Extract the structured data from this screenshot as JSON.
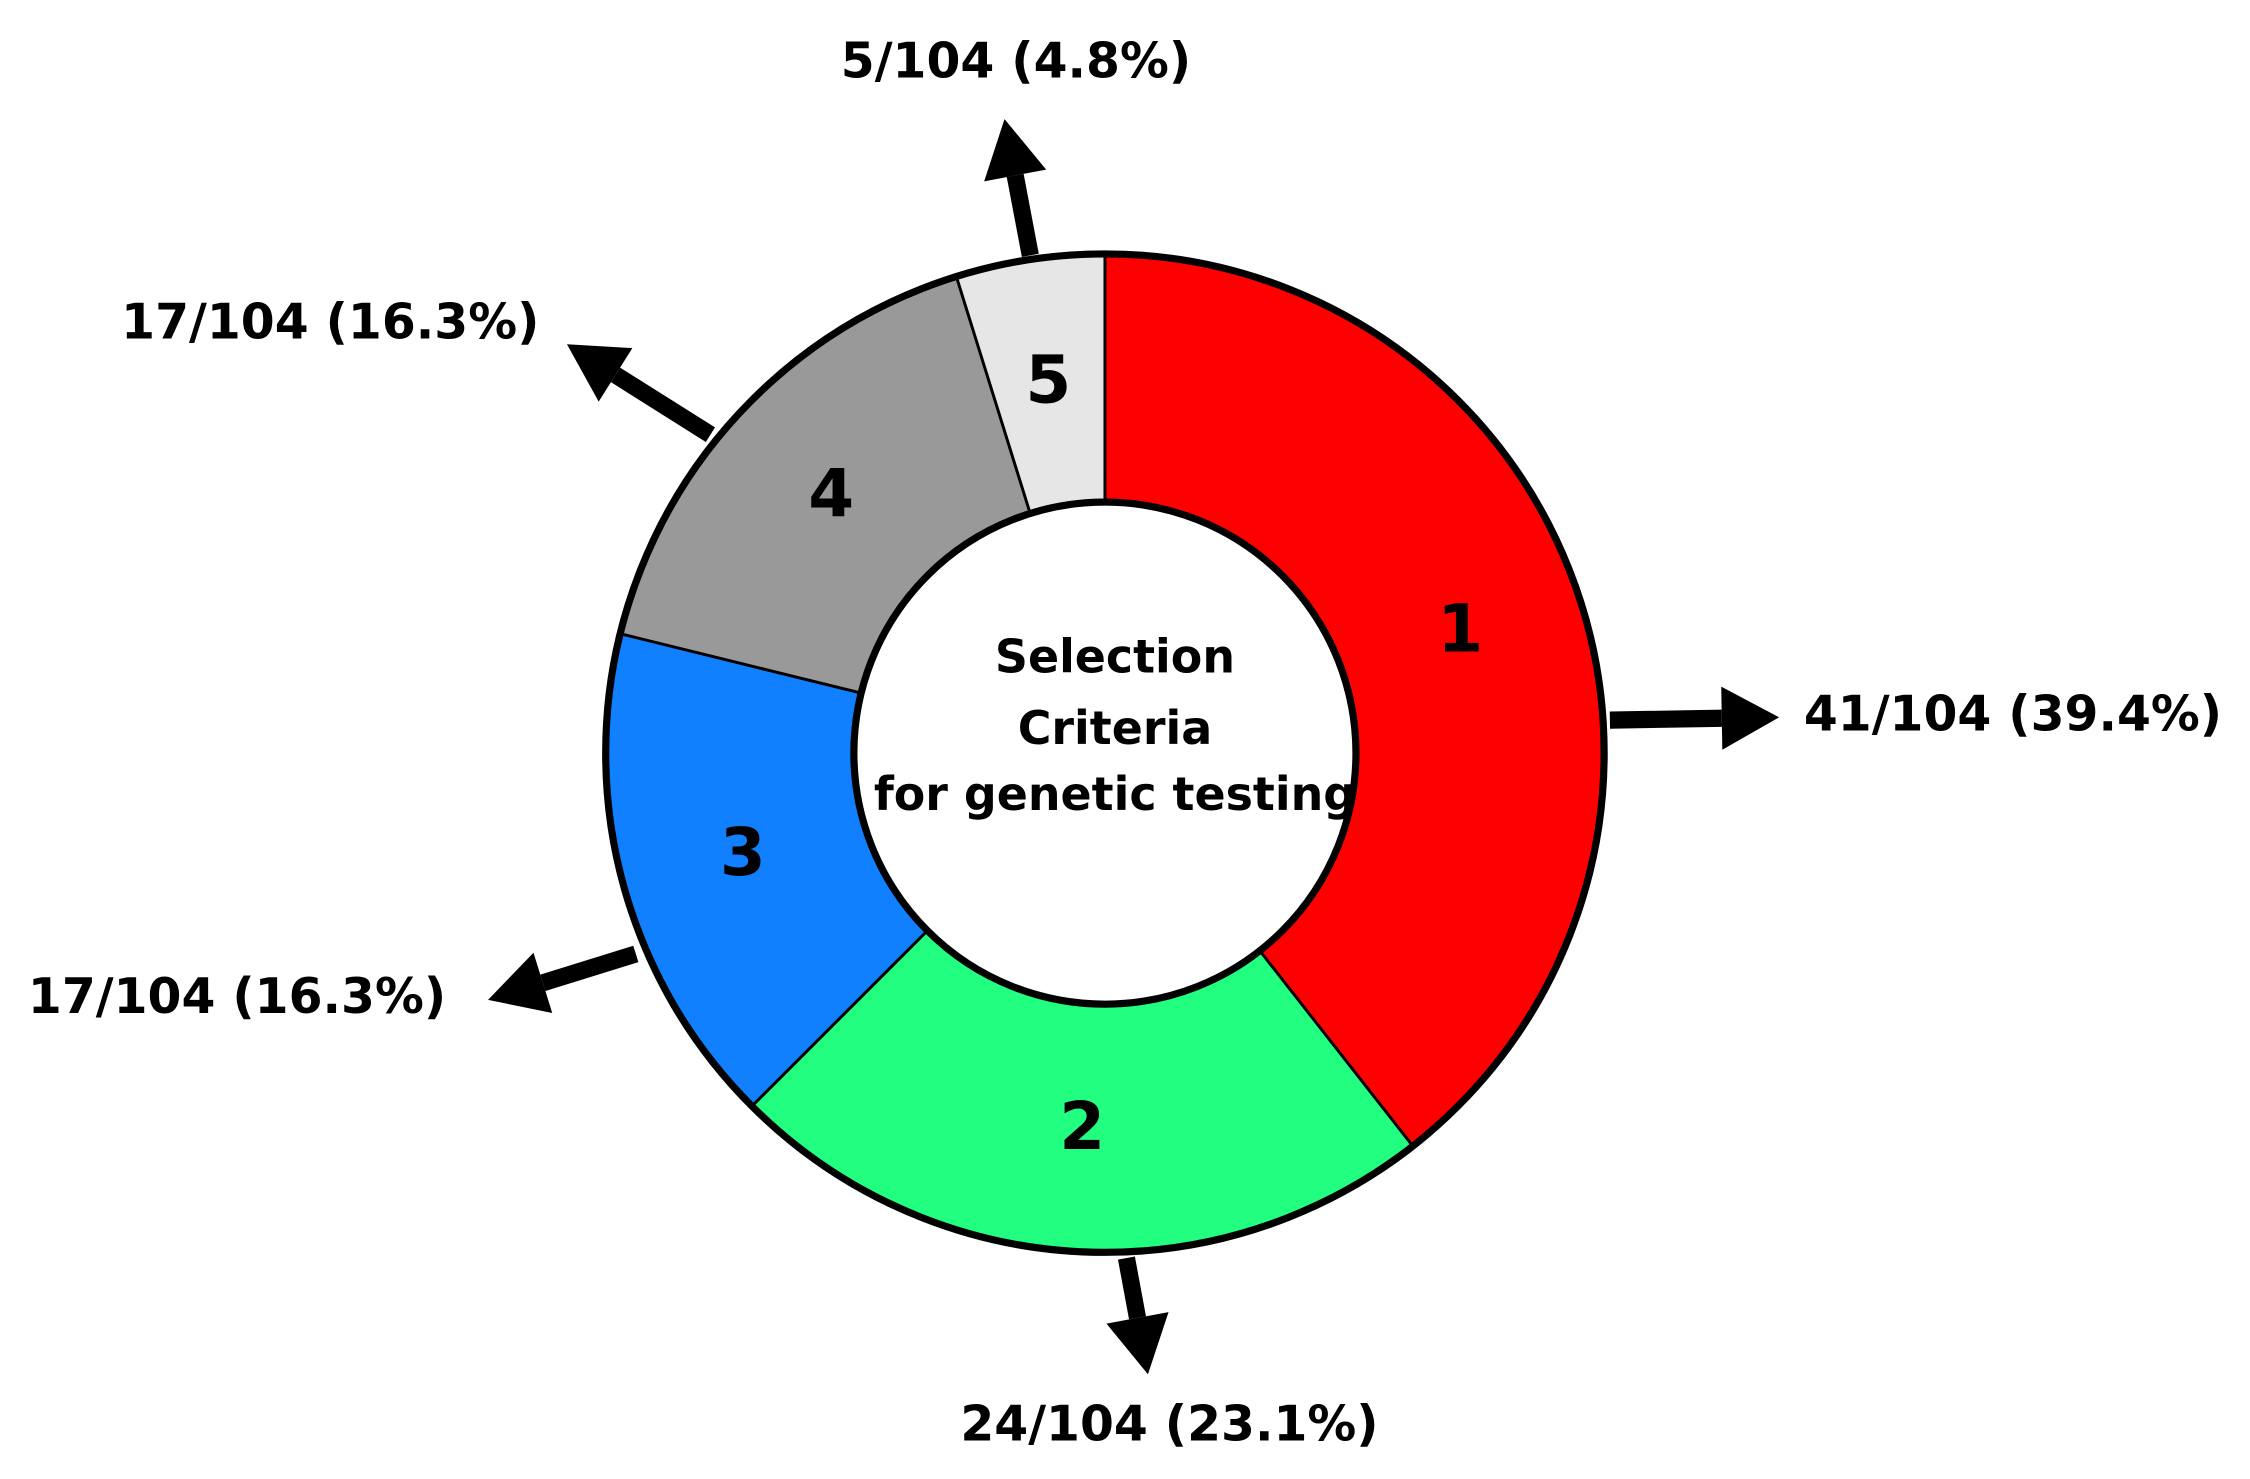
{
  "chart_data": {
    "type": "donut",
    "center_text": [
      "Selection",
      "Criteria",
      "for genetic testing"
    ],
    "categories": [
      "1",
      "2",
      "3",
      "4",
      "5"
    ],
    "values": [
      41,
      24,
      17,
      17,
      5
    ],
    "value_labels": [
      "41/104 (39.4%)",
      "24/104 (23.1%)",
      "17/104 (16.3%)",
      "17/104 (16.3%)",
      "5/104 (4.8%)"
    ],
    "colors": [
      "#ff0000",
      "#22ff80",
      "#1080ff",
      "#999999",
      "#e6e6e6"
    ]
  }
}
